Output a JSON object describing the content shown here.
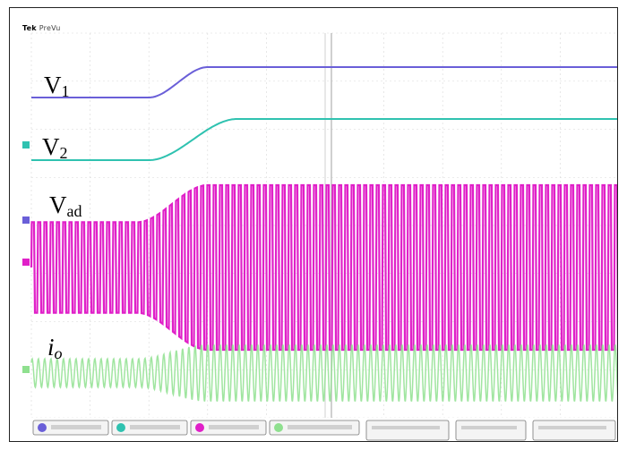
{
  "header": {
    "brand": "Tek",
    "mode": "PreVu"
  },
  "labels": {
    "v1": {
      "main": "V",
      "sub": "1"
    },
    "v2": {
      "main": "V",
      "sub": "2"
    },
    "vad": {
      "main": "V",
      "sub": "ad"
    },
    "io": {
      "main": "i",
      "sub": "o"
    }
  },
  "colors": {
    "ch1": "#6a5fd8",
    "ch2": "#2fc2b0",
    "ch3": "#e020c8",
    "ch4": "#8fe08f",
    "grid": "#d8d8d8"
  },
  "chart_data": {
    "type": "line",
    "x": [
      0,
      1
    ],
    "series": [
      {
        "name": "V1",
        "level_start": 0.25,
        "level_end": 0.78,
        "transition": [
          0.2,
          0.3
        ]
      },
      {
        "name": "V2",
        "level_start": 0.2,
        "level_end": 0.78,
        "transition": [
          0.2,
          0.35
        ]
      },
      {
        "name": "Vad",
        "amplitude_start": 0.55,
        "amplitude_end": 1.0,
        "transition": [
          0.18,
          0.3
        ]
      },
      {
        "name": "io",
        "amplitude_start": 0.5,
        "amplitude_end": 1.0,
        "transition": [
          0.18,
          0.3
        ]
      }
    ],
    "grid": true
  },
  "status_bar": {
    "readouts": [
      "",
      "",
      "",
      "",
      "",
      "",
      ""
    ]
  }
}
